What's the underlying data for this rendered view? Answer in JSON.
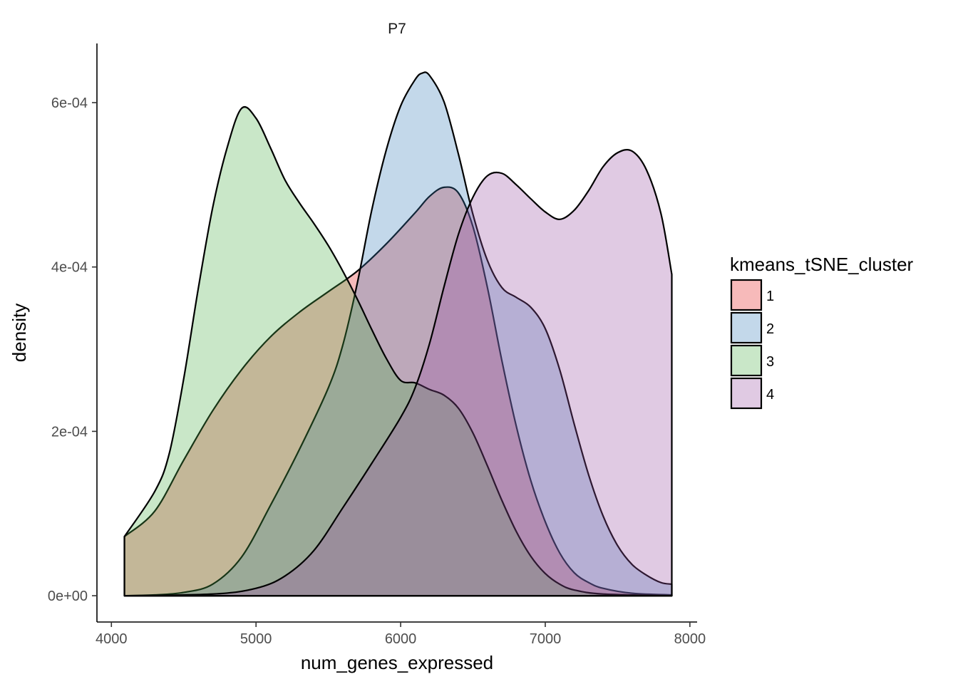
{
  "chart_data": {
    "type": "area",
    "facet_title": "P7",
    "xlabel": "num_genes_expressed",
    "ylabel": "density",
    "xlim": [
      3900,
      8050
    ],
    "ylim": [
      -3.2e-05,
      0.000672
    ],
    "x_ticks": [
      4000,
      5000,
      6000,
      7000,
      8000
    ],
    "x_tick_labels": [
      "4000",
      "5000",
      "6000",
      "7000",
      "8000"
    ],
    "y_ticks": [
      0,
      0.0002,
      0.0004,
      0.0006
    ],
    "y_tick_labels": [
      "0e+00",
      "2e-04",
      "4e-04",
      "6e-04"
    ],
    "grid": false,
    "legend": {
      "title": "kmeans_tSNE_cluster",
      "position": "right"
    },
    "series": [
      {
        "name": "1",
        "color": "#E41A1C",
        "fill_opacity": 0.3,
        "points": [
          [
            4090,
            7.2e-05
          ],
          [
            4300,
            0.000103
          ],
          [
            4500,
            0.000165
          ],
          [
            4700,
            0.000225
          ],
          [
            4900,
            0.000275
          ],
          [
            5100,
            0.000315
          ],
          [
            5300,
            0.000345
          ],
          [
            5500,
            0.00037
          ],
          [
            5700,
            0.000395
          ],
          [
            5900,
            0.000428
          ],
          [
            6100,
            0.000466
          ],
          [
            6200,
            0.000486
          ],
          [
            6300,
            0.000497
          ],
          [
            6400,
            0.00049
          ],
          [
            6500,
            0.000449
          ],
          [
            6600,
            0.000375
          ],
          [
            6700,
            0.000286
          ],
          [
            6800,
            0.000206
          ],
          [
            6900,
            0.00014
          ],
          [
            7000,
            9e-05
          ],
          [
            7100,
            5.2e-05
          ],
          [
            7200,
            2.8e-05
          ],
          [
            7300,
            1.6e-05
          ],
          [
            7400,
            9e-06
          ],
          [
            7600,
            3e-06
          ],
          [
            7875,
            1e-06
          ]
        ]
      },
      {
        "name": "2",
        "color": "#377EB8",
        "fill_opacity": 0.3,
        "points": [
          [
            4090,
            0.0
          ],
          [
            4300,
            1e-06
          ],
          [
            4500,
            4e-06
          ],
          [
            4700,
            1.4e-05
          ],
          [
            4900,
            4.7e-05
          ],
          [
            5100,
            0.00011
          ],
          [
            5300,
            0.000178
          ],
          [
            5500,
            0.000253
          ],
          [
            5600,
            0.000305
          ],
          [
            5700,
            0.00038
          ],
          [
            5800,
            0.000469
          ],
          [
            5900,
            0.000542
          ],
          [
            6000,
            0.000596
          ],
          [
            6100,
            0.000628
          ],
          [
            6150,
            0.000636
          ],
          [
            6200,
            0.000633
          ],
          [
            6300,
            0.000601
          ],
          [
            6400,
            0.000537
          ],
          [
            6500,
            0.000464
          ],
          [
            6600,
            0.000408
          ],
          [
            6700,
            0.000375
          ],
          [
            6800,
            0.000363
          ],
          [
            6900,
            0.000351
          ],
          [
            7000,
            0.000325
          ],
          [
            7100,
            0.000275
          ],
          [
            7200,
            0.000209
          ],
          [
            7300,
            0.000147
          ],
          [
            7400,
            9.7e-05
          ],
          [
            7500,
            6.1e-05
          ],
          [
            7600,
            3.8e-05
          ],
          [
            7700,
            2.5e-05
          ],
          [
            7800,
            1.6e-05
          ],
          [
            7875,
            1.4e-05
          ]
        ]
      },
      {
        "name": "3",
        "color": "#4DAF4A",
        "fill_opacity": 0.3,
        "points": [
          [
            4090,
            7.2e-05
          ],
          [
            4300,
            0.000127
          ],
          [
            4400,
            0.000173
          ],
          [
            4500,
            0.000264
          ],
          [
            4600,
            0.000373
          ],
          [
            4700,
            0.000472
          ],
          [
            4800,
            0.000545
          ],
          [
            4900,
            0.000593
          ],
          [
            5000,
            0.000581
          ],
          [
            5100,
            0.000545
          ],
          [
            5200,
            0.000506
          ],
          [
            5300,
            0.000478
          ],
          [
            5400,
            0.000453
          ],
          [
            5500,
            0.000426
          ],
          [
            5600,
            0.000395
          ],
          [
            5700,
            0.000361
          ],
          [
            5800,
            0.000324
          ],
          [
            5900,
            0.000289
          ],
          [
            6000,
            0.000262
          ],
          [
            6100,
            0.000259
          ],
          [
            6200,
            0.000251
          ],
          [
            6300,
            0.000244
          ],
          [
            6400,
            0.000228
          ],
          [
            6500,
            0.000198
          ],
          [
            6600,
            0.000158
          ],
          [
            6700,
            0.000116
          ],
          [
            6800,
            7.8e-05
          ],
          [
            6900,
            4.8e-05
          ],
          [
            7000,
            2.7e-05
          ],
          [
            7100,
            1.4e-05
          ],
          [
            7200,
            7e-06
          ],
          [
            7400,
            2e-06
          ],
          [
            7875,
            0.0
          ]
        ]
      },
      {
        "name": "4",
        "color": "#984EA3",
        "fill_opacity": 0.3,
        "points": [
          [
            4090,
            0.0
          ],
          [
            4700,
            2e-06
          ],
          [
            5000,
            9e-06
          ],
          [
            5200,
            2.4e-05
          ],
          [
            5400,
            5.5e-05
          ],
          [
            5600,
            0.000107
          ],
          [
            5800,
            0.000161
          ],
          [
            6000,
            0.000217
          ],
          [
            6100,
            0.000253
          ],
          [
            6200,
            0.000307
          ],
          [
            6300,
            0.000376
          ],
          [
            6400,
            0.00044
          ],
          [
            6500,
            0.000485
          ],
          [
            6600,
            0.000511
          ],
          [
            6700,
            0.000514
          ],
          [
            6800,
            0.0005
          ],
          [
            6900,
            0.000483
          ],
          [
            7000,
            0.000467
          ],
          [
            7100,
            0.000458
          ],
          [
            7200,
            0.000469
          ],
          [
            7300,
            0.000493
          ],
          [
            7400,
            0.000522
          ],
          [
            7500,
            0.000539
          ],
          [
            7600,
            0.000541
          ],
          [
            7700,
            0.000518
          ],
          [
            7800,
            0.000465
          ],
          [
            7875,
            0.000391
          ]
        ]
      }
    ]
  }
}
